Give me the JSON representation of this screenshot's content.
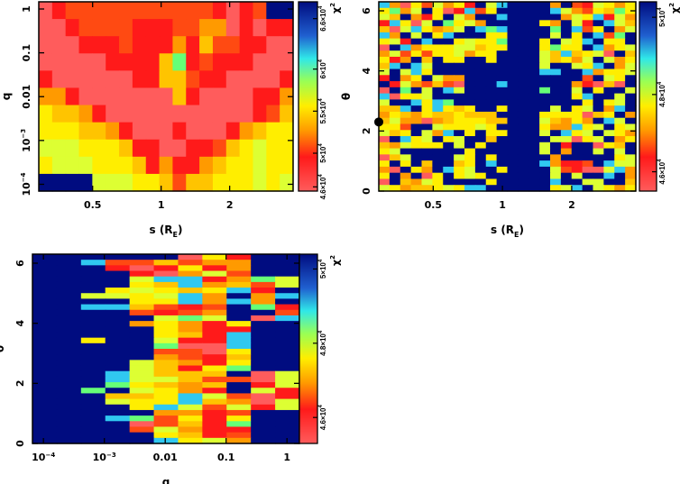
{
  "colormap": [
    "#ff5c5c",
    "#ff1a1a",
    "#ff4a12",
    "#ff9a00",
    "#ffc400",
    "#ffee00",
    "#ddff33",
    "#66ff77",
    "#30c8f0",
    "#000c80"
  ],
  "chart_data": [
    {
      "type": "heatmap",
      "xlabel": "s (R",
      "xlabel_sub": "E",
      "xlabel_close": ")",
      "ylabel": "q",
      "x_scale": "log",
      "y_scale": "log",
      "xlim": [
        0.29,
        3.8
      ],
      "ylim": [
        7e-05,
        1.46
      ],
      "xticks": [
        {
          "v": 0.5,
          "label": "0.5"
        },
        {
          "v": 1,
          "label": "1"
        },
        {
          "v": 2,
          "label": "2"
        }
      ],
      "yticks": [
        {
          "v": 1,
          "label": "1"
        },
        {
          "v": 0.1,
          "label": "0.1"
        },
        {
          "v": 0.01,
          "label": "0.01"
        },
        {
          "v": 0.001,
          "label": "10",
          "sup": "−3"
        },
        {
          "v": 0.0001,
          "label": "10",
          "sup": "−4"
        }
      ],
      "colorbar": {
        "label": "χ",
        "label_sup": "2",
        "range": [
          45500,
          68000
        ],
        "ticks": [
          {
            "v": 46000,
            "label": "4.6×10",
            "sup": "4"
          },
          {
            "v": 50000,
            "label": "5×10",
            "sup": "4"
          },
          {
            "v": 55000,
            "label": "5.5×10",
            "sup": "4"
          },
          {
            "v": 60000,
            "label": "6×10",
            "sup": "4"
          },
          {
            "v": 66000,
            "label": "6.6×10",
            "sup": "4"
          }
        ]
      },
      "z_levels_rows_top_to_bottom": [
        "0122222222222101299",
        "0012222111223301011",
        "0001112111314221100",
        "0000011114712111000",
        "1000000114421100001",
        "3310000000410000113",
        "5443100000000000124",
        "5554431000100013455",
        "6665554110011245655",
        "5666555413113455655",
        "9999666554244555656"
      ]
    },
    {
      "type": "heatmap",
      "xlabel": "s (R",
      "xlabel_sub": "E",
      "xlabel_close": ")",
      "ylabel": "θ",
      "x_scale": "log",
      "xlim": [
        0.29,
        3.8
      ],
      "ylim": [
        0,
        6.3
      ],
      "xticks": [
        {
          "v": 0.5,
          "label": "0.5"
        },
        {
          "v": 1,
          "label": "1"
        },
        {
          "v": 2,
          "label": "2"
        }
      ],
      "yticks": [
        {
          "v": 0,
          "label": "0"
        },
        {
          "v": 2,
          "label": "2"
        },
        {
          "v": 4,
          "label": "4"
        },
        {
          "v": 6,
          "label": "6"
        }
      ],
      "marker": {
        "s": 0.29,
        "theta": 2.3
      },
      "colorbar": {
        "label": "χ",
        "label_sup": "2",
        "range": [
          45500,
          50400
        ],
        "ticks": [
          {
            "v": 46000,
            "label": "4.6×10",
            "sup": "4"
          },
          {
            "v": 48000,
            "label": "4.8×10",
            "sup": "4"
          },
          {
            "v": 50000,
            "label": "5×10",
            "sup": "4"
          }
        ]
      },
      "z_levels_rows_top_to_bottom": [
        "830526351968999939216535",
        "573695018259999986325475",
        "649315963998999993658163",
        "185069756399999539619864",
        "406853469878999979825936",
        "839695899955999969598279",
        "561989956557999596589559",
        "098355566455999575598356",
        "362525563559999648456094",
        "513949559959999645369635",
        "489869999999999699658936",
        "696859999999999889983556",
        "193596339999999999929659",
        "916324209998999999310409",
        "097969869999999799695996",
        "805569999999999999589969",
        "699858799999999999959569",
        "448958545995999969569389",
        "354354454449999555504593",
        "463303455544999643539869",
        "552996555659999533856956",
        "645963895955999698569653",
        "098569569949999966056935",
        "436555969599999691990549",
        "569999995999999693996969",
        "046999965959999939999956",
        "595949945989999831129866",
        "309539856995999962100683",
        "593905956599999969699893",
        "094365999959999989966994",
        "653445658899999956896535"
      ]
    },
    {
      "type": "heatmap",
      "xlabel": "q",
      "ylabel": "θ",
      "x_scale": "log",
      "xlim": [
        6.6e-05,
        1.6
      ],
      "ylim": [
        0,
        6.3
      ],
      "xticks": [
        {
          "v": 0.0001,
          "label": "10",
          "sup": "−4"
        },
        {
          "v": 0.001,
          "label": "10",
          "sup": "−3"
        },
        {
          "v": 0.01,
          "label": "0.01"
        },
        {
          "v": 0.1,
          "label": "0.1"
        },
        {
          "v": 1,
          "label": "1"
        }
      ],
      "yticks": [
        {
          "v": 0,
          "label": "0"
        },
        {
          "v": 2,
          "label": "2"
        },
        {
          "v": 4,
          "label": "4"
        },
        {
          "v": 6,
          "label": "6"
        }
      ],
      "colorbar": {
        "label": "χ",
        "label_sup": "2",
        "range": [
          45300,
          50400
        ],
        "ticks": [
          {
            "v": 46000,
            "label": "4.6×10",
            "sup": "4"
          },
          {
            "v": 48000,
            "label": "4.8×10",
            "sup": "4"
          },
          {
            "v": 50000,
            "label": "5×10",
            "sup": "4"
          }
        ]
      },
      "z_levels_rows_top_to_bottom": [
        "99999905199",
        "99822423399",
        "99910151399",
        "99991036299",
        "99996881376",
        "99995483426",
        "99956545819",
        "99665683938",
        "99995583839",
        "99884212971",
        "99992123992",
        "99999676908",
        "99993531599",
        "99999531199",
        "99999541899",
        "99599611899",
        "99999700899",
        "99999220599",
        "99999321499",
        "99996431599",
        "99996415799",
        "99986444906",
        "99986642206",
        "99975434916",
        "99796531961",
        "99944586201",
        "99965584306",
        "99995862616",
        "99999331299",
        "99987251599",
        "99990241799",
        "99992631199",
        "99999541299",
        "99999856399"
      ]
    }
  ]
}
